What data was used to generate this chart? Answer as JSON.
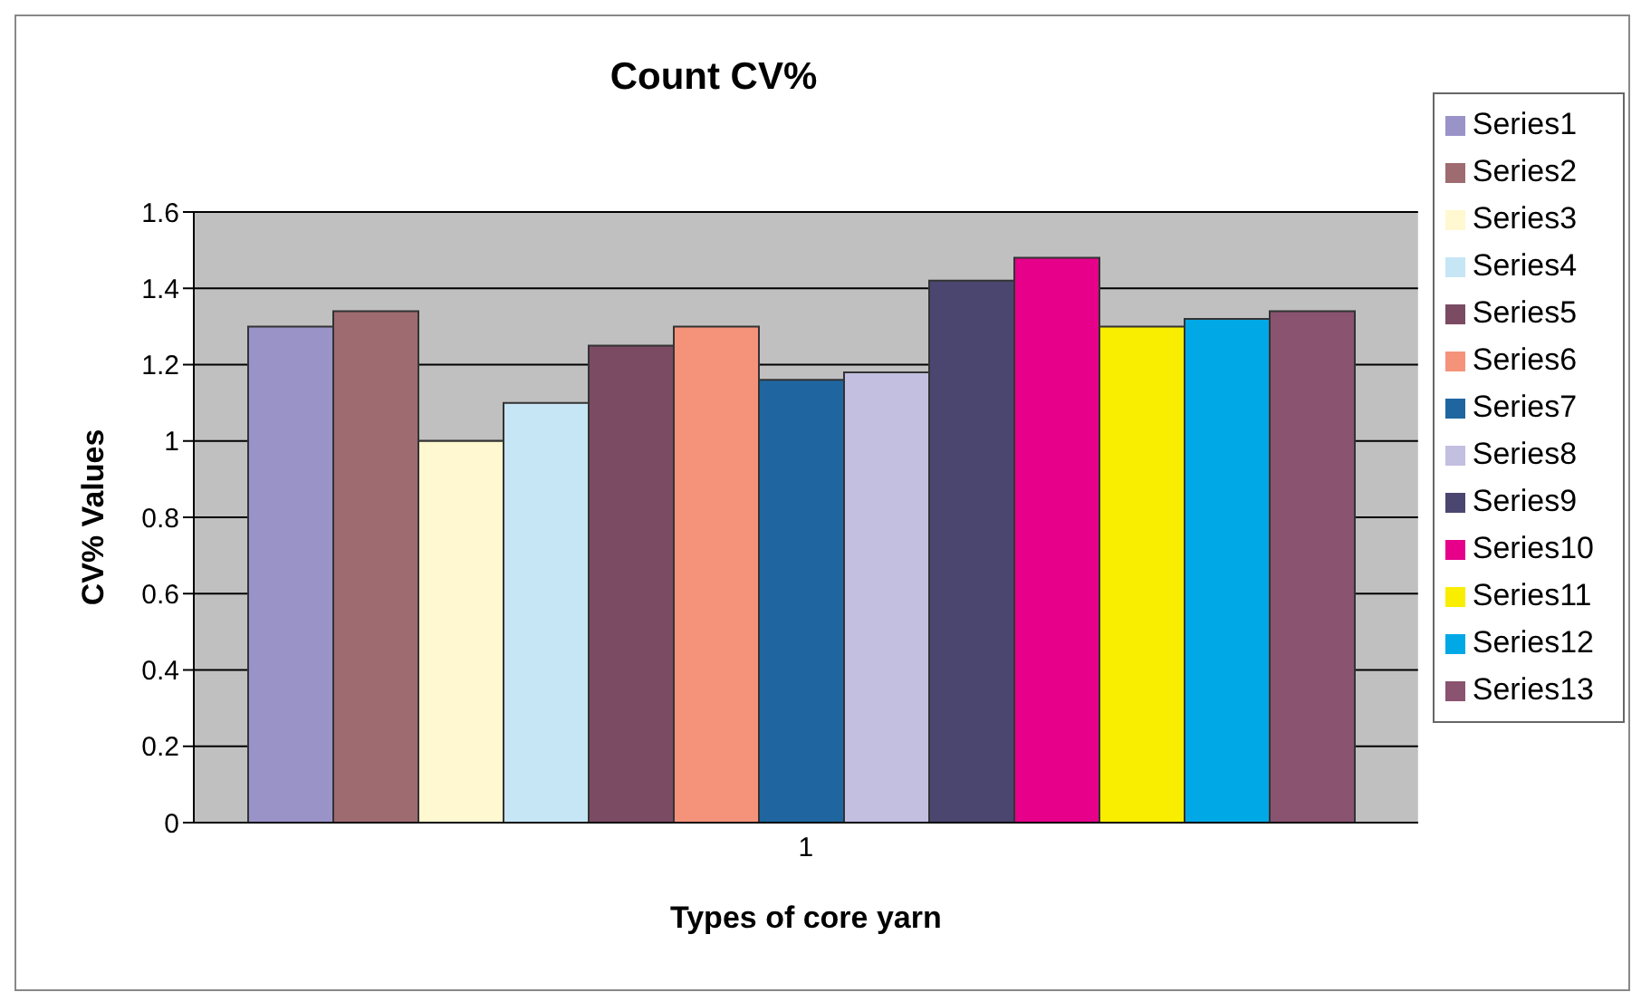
{
  "chart_data": {
    "type": "bar",
    "title": "Count CV%",
    "xlabel": "Types of core yarn",
    "ylabel": "CV% Values",
    "categories": [
      "1"
    ],
    "series": [
      {
        "name": "Series1",
        "color": "#9a93c8",
        "values": [
          1.3
        ]
      },
      {
        "name": "Series2",
        "color": "#9e6b70",
        "values": [
          1.34
        ]
      },
      {
        "name": "Series3",
        "color": "#fff8d0",
        "values": [
          1.0
        ]
      },
      {
        "name": "Series4",
        "color": "#c6e6f6",
        "values": [
          1.1
        ]
      },
      {
        "name": "Series5",
        "color": "#7a4b63",
        "values": [
          1.25
        ]
      },
      {
        "name": "Series6",
        "color": "#f4937a",
        "values": [
          1.3
        ]
      },
      {
        "name": "Series7",
        "color": "#1f66a0",
        "values": [
          1.16
        ]
      },
      {
        "name": "Series8",
        "color": "#c2bfe0",
        "values": [
          1.18
        ]
      },
      {
        "name": "Series9",
        "color": "#4a4670",
        "values": [
          1.42
        ]
      },
      {
        "name": "Series10",
        "color": "#e6008a",
        "values": [
          1.48
        ]
      },
      {
        "name": "Series11",
        "color": "#f9ed00",
        "values": [
          1.3
        ]
      },
      {
        "name": "Series12",
        "color": "#00a8e6",
        "values": [
          1.32
        ]
      },
      {
        "name": "Series13",
        "color": "#8a5370",
        "values": [
          1.34
        ]
      }
    ],
    "ylim": [
      0,
      1.6
    ],
    "yticks": [
      0,
      0.2,
      0.4,
      0.6,
      0.8,
      1,
      1.2,
      1.4,
      1.6
    ],
    "grid": "y",
    "legend": "right"
  }
}
